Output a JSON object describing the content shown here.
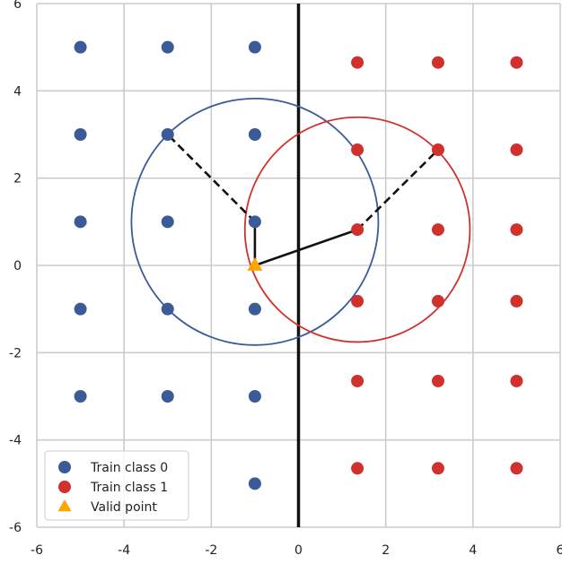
{
  "chart_data": {
    "type": "scatter",
    "title": "",
    "xlabel": "",
    "ylabel": "",
    "xlim": [
      -6,
      6
    ],
    "ylim": [
      -6,
      6
    ],
    "grid": true,
    "xticks": [
      -6,
      -4,
      -2,
      0,
      2,
      4,
      6
    ],
    "yticks": [
      -6,
      -4,
      -2,
      0,
      2,
      4,
      6
    ],
    "series": [
      {
        "name": "Train class 0",
        "marker": "circle",
        "color": "#3a5a98",
        "points": [
          [
            -5,
            5
          ],
          [
            -3,
            5
          ],
          [
            -1,
            5
          ],
          [
            -5,
            3
          ],
          [
            -3,
            3
          ],
          [
            -1,
            3
          ],
          [
            -5,
            1
          ],
          [
            -3,
            1
          ],
          [
            -1,
            1
          ],
          [
            -5,
            -1
          ],
          [
            -3,
            -1
          ],
          [
            -1,
            -1
          ],
          [
            -5,
            -3
          ],
          [
            -3,
            -3
          ],
          [
            -1,
            -3
          ],
          [
            -1,
            -5
          ]
        ]
      },
      {
        "name": "Train class 1",
        "marker": "circle",
        "color": "#d0312d",
        "points": [
          [
            1.35,
            4.65
          ],
          [
            3.2,
            4.65
          ],
          [
            5,
            4.65
          ],
          [
            1.35,
            2.65
          ],
          [
            3.2,
            2.65
          ],
          [
            5,
            2.65
          ],
          [
            1.35,
            0.82
          ],
          [
            3.2,
            0.82
          ],
          [
            5,
            0.82
          ],
          [
            1.35,
            -0.82
          ],
          [
            3.2,
            -0.82
          ],
          [
            5,
            -0.82
          ],
          [
            1.35,
            -2.65
          ],
          [
            3.2,
            -2.65
          ],
          [
            5,
            -2.65
          ],
          [
            1.35,
            -4.65
          ],
          [
            3.2,
            -4.65
          ],
          [
            5,
            -4.65
          ]
        ]
      },
      {
        "name": "Valid point",
        "marker": "triangle",
        "color": "#ffa500",
        "points": [
          [
            -1,
            0
          ]
        ]
      }
    ],
    "decision_boundary": {
      "x": 0,
      "color": "#111111"
    },
    "circles": [
      {
        "center": [
          -1,
          1
        ],
        "radius": 2.83,
        "color": "#3a5a98"
      },
      {
        "center": [
          1.35,
          0.82
        ],
        "radius": 2.58,
        "color": "#d0312d"
      }
    ],
    "solid_segments": [
      [
        [
          -1,
          0
        ],
        [
          -1,
          1
        ]
      ],
      [
        [
          -1,
          0
        ],
        [
          1.35,
          0.82
        ]
      ]
    ],
    "dashed_segments": [
      [
        [
          -1,
          1
        ],
        [
          -3,
          3
        ]
      ],
      [
        [
          1.35,
          0.82
        ],
        [
          3.2,
          2.65
        ]
      ]
    ],
    "legend": {
      "placement": "lower-left",
      "entries": [
        "Train class 0",
        "Train class 1",
        "Valid point"
      ]
    }
  }
}
